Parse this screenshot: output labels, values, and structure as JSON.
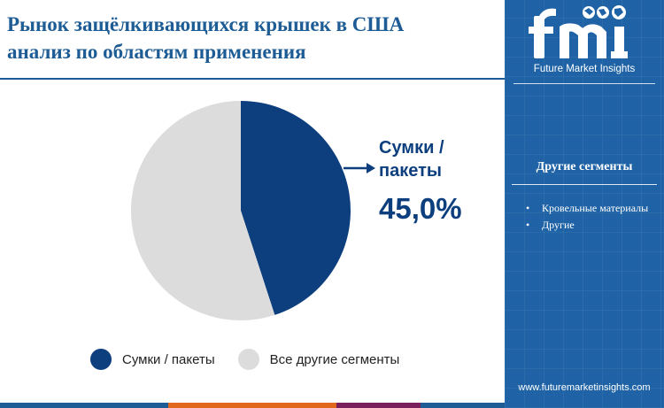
{
  "title": {
    "line1": "Рынок защёлкивающихся крышек в США",
    "line2": "анализ по областям применения"
  },
  "callout": {
    "label": "Сумки / пакеты",
    "value": "45,0%"
  },
  "legend": [
    {
      "label": "Сумки / пакеты",
      "color": "#0d3f7e"
    },
    {
      "label": "Все другие сегменты",
      "color": "#dcdcdc"
    }
  ],
  "chart_data": {
    "type": "pie",
    "slices": [
      {
        "label": "Сумки / пакеты",
        "value": 45.0,
        "color": "#0d3f7e"
      },
      {
        "label": "Все другие сегменты",
        "value": 55.0,
        "color": "#dcdcdc"
      }
    ],
    "start_angle_deg": 0,
    "direction": "clockwise",
    "legend_position": "bottom"
  },
  "sidebar": {
    "brand_text": "Future Market Insights",
    "panel_heading": "Другие сегменты",
    "items": [
      "Кровельные материалы",
      "Другие"
    ],
    "url": "www.futuremarketinsights.com"
  },
  "colors": {
    "title": "#1d5c94",
    "sidebar_bg": "#1f63a6",
    "accent_dark": "#0d3f7e",
    "bottom_bar": [
      "#1d5c94",
      "#e0671c",
      "#7a1f5c",
      "#1d5c94"
    ]
  }
}
